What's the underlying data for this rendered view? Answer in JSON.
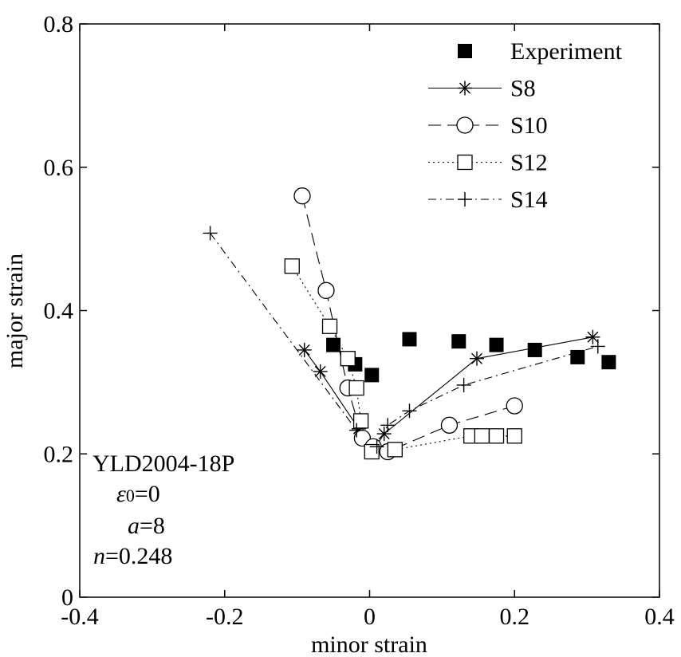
{
  "chart_data": {
    "type": "line",
    "xlabel": "minor strain",
    "ylabel": "major strain",
    "xlim": [
      -0.4,
      0.4
    ],
    "ylim": [
      0,
      0.8
    ],
    "xticks": [
      -0.4,
      -0.2,
      0,
      0.2,
      0.4
    ],
    "yticks": [
      0,
      0.2,
      0.4,
      0.6,
      0.8
    ],
    "xtick_labels": [
      "-0.4",
      "-0.2",
      "0",
      "0.2",
      "0.4"
    ],
    "ytick_labels": [
      "0",
      "0.2",
      "0.4",
      "0.6",
      "0.8"
    ],
    "grid": false,
    "legend_position": "top-right",
    "series": [
      {
        "name": "Experiment",
        "marker": "filled-square",
        "line": "none",
        "points": [
          [
            -0.05,
            0.352
          ],
          [
            -0.02,
            0.325
          ],
          [
            0.003,
            0.31
          ],
          [
            0.055,
            0.36
          ],
          [
            0.123,
            0.357
          ],
          [
            0.175,
            0.352
          ],
          [
            0.228,
            0.345
          ],
          [
            0.287,
            0.335
          ],
          [
            0.33,
            0.328
          ]
        ]
      },
      {
        "name": "S8",
        "marker": "asterisk",
        "line": "solid",
        "points": [
          [
            -0.09,
            0.345
          ],
          [
            -0.068,
            0.315
          ],
          [
            -0.015,
            0.235
          ],
          [
            0.007,
            0.208
          ],
          [
            0.02,
            0.228
          ],
          [
            0.148,
            0.333
          ],
          [
            0.308,
            0.363
          ]
        ]
      },
      {
        "name": "S10",
        "marker": "open-circle",
        "line": "dashed",
        "points": [
          [
            -0.093,
            0.56
          ],
          [
            -0.06,
            0.428
          ],
          [
            -0.03,
            0.292
          ],
          [
            -0.01,
            0.222
          ],
          [
            0.005,
            0.21
          ],
          [
            0.025,
            0.203
          ],
          [
            0.11,
            0.24
          ],
          [
            0.2,
            0.267
          ]
        ]
      },
      {
        "name": "S12",
        "marker": "open-square",
        "line": "dotted",
        "points": [
          [
            -0.107,
            0.462
          ],
          [
            -0.055,
            0.378
          ],
          [
            -0.03,
            0.333
          ],
          [
            -0.018,
            0.292
          ],
          [
            -0.012,
            0.246
          ],
          [
            0.003,
            0.203
          ],
          [
            0.035,
            0.206
          ],
          [
            0.14,
            0.225
          ],
          [
            0.155,
            0.225
          ],
          [
            0.175,
            0.225
          ],
          [
            0.2,
            0.225
          ]
        ]
      },
      {
        "name": "S14",
        "marker": "plus",
        "line": "dash-dot",
        "points": [
          [
            -0.22,
            0.508
          ],
          [
            -0.018,
            0.233
          ],
          [
            0.01,
            0.21
          ],
          [
            0.025,
            0.24
          ],
          [
            0.055,
            0.26
          ],
          [
            0.13,
            0.296
          ],
          [
            0.315,
            0.35
          ]
        ]
      }
    ],
    "annotation": {
      "line1": "YLD2004-18P",
      "epsilon_symbol": "ε",
      "epsilon_sub": "0",
      "epsilon_value": "=0",
      "a_symbol": "a",
      "a_value": "=8",
      "n_symbol": "n",
      "n_value": "=0.248"
    }
  }
}
